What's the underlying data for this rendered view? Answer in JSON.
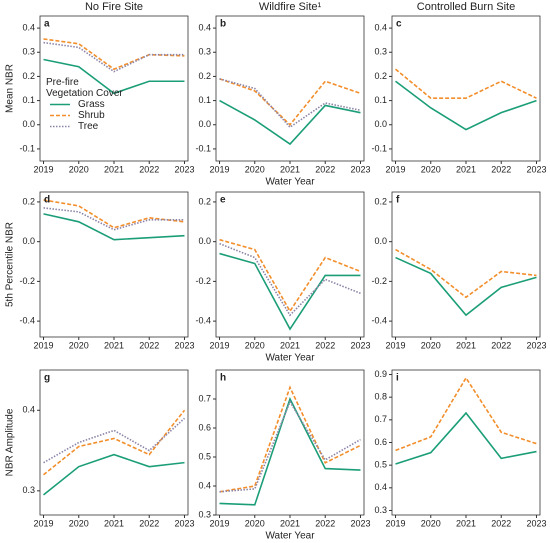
{
  "chart_data": [
    {
      "type": "line",
      "label": "a",
      "title": "No Fire Site",
      "ylabel": "Mean NBR",
      "x": [
        2019,
        2020,
        2021,
        2022,
        2023
      ],
      "xlim": [
        2018.9,
        2023.1
      ],
      "xticks": [
        2019,
        2020,
        2021,
        2022,
        2023
      ],
      "ylim": [
        -0.15,
        0.45
      ],
      "yticks": [
        -0.1,
        {
          "value": 0,
          "label": "0.0"
        },
        0.1,
        0.2,
        0.3,
        0.4
      ],
      "legend": "center-left",
      "legend_title": [
        "Pre-fire",
        "Vegetation Cover"
      ],
      "series": [
        {
          "name": "Grass",
          "color": "#1b9e77",
          "style": "solid",
          "values": [
            0.27,
            0.24,
            0.13,
            0.18,
            0.18
          ]
        },
        {
          "name": "Shrub",
          "color": "#f28e2b",
          "style": "dashed",
          "values": [
            0.355,
            0.335,
            0.23,
            0.29,
            0.285
          ]
        },
        {
          "name": "Tree",
          "color": "#8c84a8",
          "style": "dotted",
          "values": [
            0.34,
            0.32,
            0.22,
            0.29,
            0.29
          ]
        }
      ]
    },
    {
      "type": "line",
      "label": "b",
      "title": "Wildfire Site¹",
      "xlabel": "Water Year",
      "x": [
        2019,
        2020,
        2021,
        2022,
        2023
      ],
      "xlim": [
        2018.9,
        2023.1
      ],
      "xticks": [
        2019,
        2020,
        2021,
        2022,
        2023
      ],
      "ylim": [
        -0.15,
        0.45
      ],
      "yticks": [
        -0.1,
        {
          "value": 0,
          "label": "0.0"
        },
        0.1,
        0.2,
        0.3,
        0.4
      ],
      "series": [
        {
          "name": "Grass",
          "color": "#1b9e77",
          "style": "solid",
          "values": [
            0.1,
            0.02,
            -0.08,
            0.08,
            0.05
          ]
        },
        {
          "name": "Shrub",
          "color": "#f28e2b",
          "style": "dashed",
          "values": [
            0.19,
            0.14,
            0,
            0.18,
            0.13
          ]
        },
        {
          "name": "Tree",
          "color": "#8c84a8",
          "style": "dotted",
          "values": [
            0.19,
            0.15,
            -0.01,
            0.09,
            0.06
          ]
        }
      ]
    },
    {
      "type": "line",
      "label": "c",
      "title": "Controlled Burn Site",
      "x": [
        2019,
        2020,
        2021,
        2022,
        2023
      ],
      "xlim": [
        2018.9,
        2023.1
      ],
      "xticks": [
        2019,
        2020,
        2021,
        2022,
        2023
      ],
      "ylim": [
        -0.15,
        0.45
      ],
      "yticks": [
        -0.1,
        {
          "value": 0,
          "label": "0.0"
        },
        0.1,
        0.2,
        0.3,
        0.4
      ],
      "series": [
        {
          "name": "Grass",
          "color": "#1b9e77",
          "style": "solid",
          "values": [
            0.18,
            0.07,
            -0.02,
            0.05,
            0.1
          ]
        },
        {
          "name": "Shrub",
          "color": "#f28e2b",
          "style": "dashed",
          "values": [
            0.23,
            0.11,
            0.11,
            0.18,
            0.11
          ]
        }
      ]
    },
    {
      "type": "line",
      "label": "d",
      "ylabel": "5th Percentile NBR",
      "x": [
        2019,
        2020,
        2021,
        2022,
        2023
      ],
      "xlim": [
        2018.9,
        2023.1
      ],
      "xticks": [
        2019,
        2020,
        2021,
        2022,
        2023
      ],
      "ylim": [
        -0.48,
        0.25
      ],
      "yticks": [
        -0.4,
        -0.2,
        {
          "value": 0,
          "label": "0.0"
        },
        0.2
      ],
      "series": [
        {
          "name": "Grass",
          "color": "#1b9e77",
          "style": "solid",
          "values": [
            0.14,
            0.1,
            0.01,
            0.02,
            0.03
          ]
        },
        {
          "name": "Shrub",
          "color": "#f28e2b",
          "style": "dashed",
          "values": [
            0.21,
            0.18,
            0.07,
            0.12,
            0.1
          ]
        },
        {
          "name": "Tree",
          "color": "#8c84a8",
          "style": "dotted",
          "values": [
            0.17,
            0.15,
            0.06,
            0.11,
            0.11
          ]
        }
      ]
    },
    {
      "type": "line",
      "label": "e",
      "xlabel": "Water Year",
      "x": [
        2019,
        2020,
        2021,
        2022,
        2023
      ],
      "xlim": [
        2018.9,
        2023.1
      ],
      "xticks": [
        2019,
        2020,
        2021,
        2022,
        2023
      ],
      "ylim": [
        -0.48,
        0.25
      ],
      "yticks": [
        -0.4,
        -0.2,
        {
          "value": 0,
          "label": "0.0"
        },
        0.2
      ],
      "series": [
        {
          "name": "Grass",
          "color": "#1b9e77",
          "style": "solid",
          "values": [
            -0.06,
            -0.11,
            -0.44,
            -0.17,
            -0.17
          ]
        },
        {
          "name": "Shrub",
          "color": "#f28e2b",
          "style": "dashed",
          "values": [
            0.01,
            -0.04,
            -0.35,
            -0.08,
            -0.15
          ]
        },
        {
          "name": "Tree",
          "color": "#8c84a8",
          "style": "dotted",
          "values": [
            -0.01,
            -0.08,
            -0.37,
            -0.19,
            -0.26
          ]
        }
      ]
    },
    {
      "type": "line",
      "label": "f",
      "x": [
        2019,
        2020,
        2021,
        2022,
        2023
      ],
      "xlim": [
        2018.9,
        2023.1
      ],
      "xticks": [
        2019,
        2020,
        2021,
        2022,
        2023
      ],
      "ylim": [
        -0.48,
        0.25
      ],
      "yticks": [
        -0.4,
        -0.2,
        {
          "value": 0,
          "label": "0.0"
        },
        0.2
      ],
      "series": [
        {
          "name": "Grass",
          "color": "#1b9e77",
          "style": "solid",
          "values": [
            -0.08,
            -0.16,
            -0.37,
            -0.23,
            -0.18
          ]
        },
        {
          "name": "Shrub",
          "color": "#f28e2b",
          "style": "dashed",
          "values": [
            -0.04,
            -0.14,
            -0.28,
            -0.15,
            -0.17
          ]
        }
      ]
    },
    {
      "type": "line",
      "label": "g",
      "ylabel": "NBR Amplitude",
      "x": [
        2019,
        2020,
        2021,
        2022,
        2023
      ],
      "xlim": [
        2018.9,
        2023.1
      ],
      "xticks": [
        2019,
        2020,
        2021,
        2022,
        2023
      ],
      "ylim": [
        0.27,
        0.45
      ],
      "yticks": [
        0.3,
        0.4
      ],
      "series": [
        {
          "name": "Grass",
          "color": "#1b9e77",
          "style": "solid",
          "values": [
            0.295,
            0.33,
            0.345,
            0.33,
            0.335
          ]
        },
        {
          "name": "Shrub",
          "color": "#f28e2b",
          "style": "dashed",
          "values": [
            0.32,
            0.355,
            0.365,
            0.345,
            0.4
          ]
        },
        {
          "name": "Tree",
          "color": "#8c84a8",
          "style": "dotted",
          "values": [
            0.335,
            0.36,
            0.375,
            0.35,
            0.39
          ]
        }
      ]
    },
    {
      "type": "line",
      "label": "h",
      "xlabel": "Water Year",
      "x": [
        2019,
        2020,
        2021,
        2022,
        2023
      ],
      "xlim": [
        2018.9,
        2023.1
      ],
      "xticks": [
        2019,
        2020,
        2021,
        2022,
        2023
      ],
      "ylim": [
        0.3,
        0.8
      ],
      "yticks": [
        0.3,
        0.4,
        0.5,
        0.6,
        0.7
      ],
      "series": [
        {
          "name": "Grass",
          "color": "#1b9e77",
          "style": "solid",
          "values": [
            0.34,
            0.335,
            0.7,
            0.46,
            0.455
          ]
        },
        {
          "name": "Shrub",
          "color": "#f28e2b",
          "style": "dashed",
          "values": [
            0.38,
            0.4,
            0.74,
            0.48,
            0.54
          ]
        },
        {
          "name": "Tree",
          "color": "#8c84a8",
          "style": "dotted",
          "values": [
            0.38,
            0.39,
            0.69,
            0.49,
            0.56
          ]
        }
      ]
    },
    {
      "type": "line",
      "label": "i",
      "x": [
        2019,
        2020,
        2021,
        2022,
        2023
      ],
      "xlim": [
        2018.9,
        2023.1
      ],
      "xticks": [
        2019,
        2020,
        2021,
        2022,
        2023
      ],
      "ylim": [
        0.28,
        0.92
      ],
      "yticks": [
        0.3,
        0.4,
        0.5,
        0.6,
        0.7,
        0.8,
        0.9
      ],
      "series": [
        {
          "name": "Grass",
          "color": "#1b9e77",
          "style": "solid",
          "values": [
            0.505,
            0.555,
            0.73,
            0.53,
            0.56
          ]
        },
        {
          "name": "Shrub",
          "color": "#f28e2b",
          "style": "dashed",
          "values": [
            0.565,
            0.625,
            0.885,
            0.645,
            0.595
          ]
        }
      ]
    }
  ]
}
